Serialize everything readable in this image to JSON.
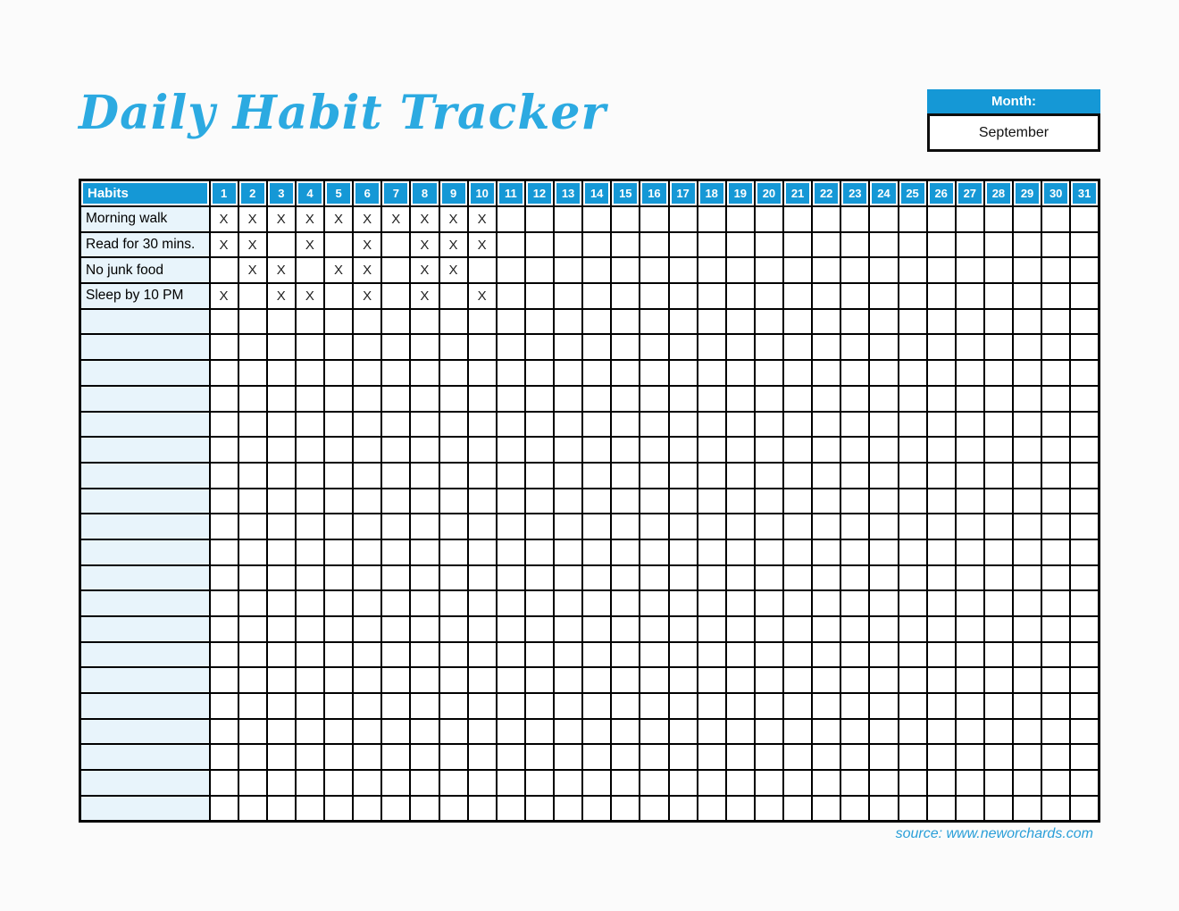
{
  "title": "Daily Habit Tracker",
  "month_box": {
    "label": "Month:",
    "value": "September"
  },
  "tracker": {
    "habits_header": "Habits",
    "day_numbers": [
      "1",
      "2",
      "3",
      "4",
      "5",
      "6",
      "7",
      "8",
      "9",
      "10",
      "11",
      "12",
      "13",
      "14",
      "15",
      "16",
      "17",
      "18",
      "19",
      "20",
      "21",
      "22",
      "23",
      "24",
      "25",
      "26",
      "27",
      "28",
      "29",
      "30",
      "31"
    ],
    "mark_symbol": "X",
    "rows": [
      {
        "habit": "Morning walk",
        "marked_days": [
          1,
          2,
          3,
          4,
          5,
          6,
          7,
          8,
          9,
          10
        ]
      },
      {
        "habit": "Read for 30 mins.",
        "marked_days": [
          1,
          2,
          4,
          6,
          8,
          9,
          10
        ]
      },
      {
        "habit": "No junk food",
        "marked_days": [
          2,
          3,
          5,
          6,
          8,
          9
        ]
      },
      {
        "habit": "Sleep by 10 PM",
        "marked_days": [
          1,
          3,
          4,
          6,
          8,
          10
        ]
      }
    ],
    "empty_rows": 20
  },
  "footer": {
    "source": "source: www.neworchards.com"
  },
  "colors": {
    "header_blue": "#1598D6",
    "title_blue": "#2CAAE1",
    "habit_column_blue": "#E8F4FB",
    "footer_blue": "#2A9FD8",
    "grid_black": "#000000",
    "page_background": "#FBFBFB"
  }
}
